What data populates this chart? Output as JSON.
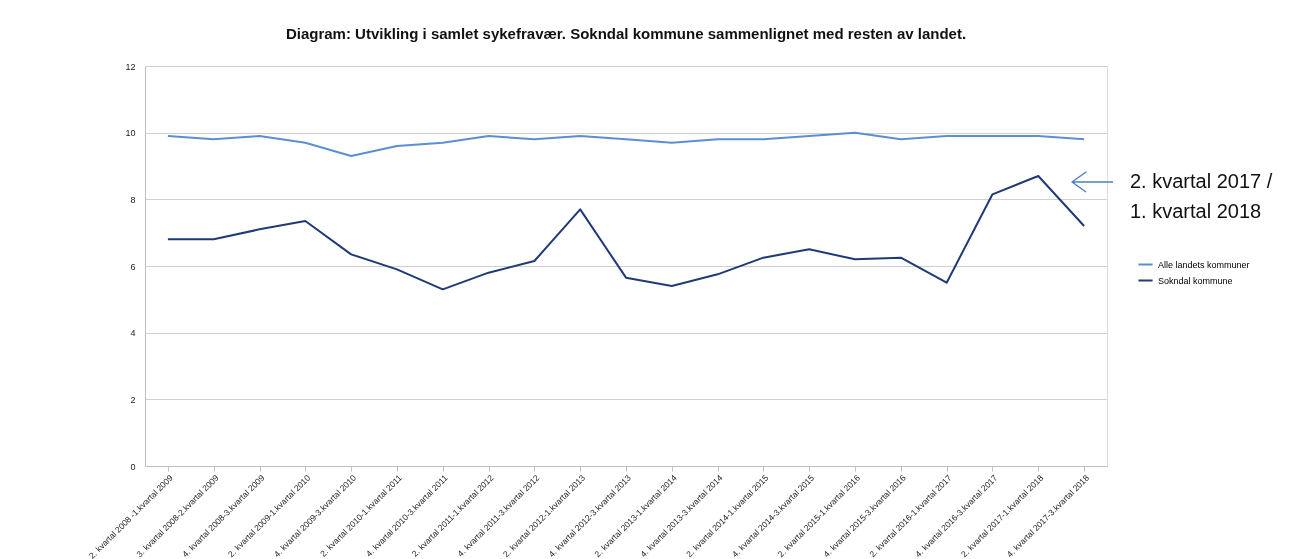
{
  "chart_data": {
    "type": "line",
    "title": "Diagram: Utvikling i samlet sykefravær. Sokndal kommune sammenlignet med resten av landet.",
    "categories": [
      "2. kvartal 2008 -1.kvartal 2009",
      "3. kvartal 2008-2.kvartal 2009",
      "4. kvartal 2008-3.kvartal 2009",
      "2. kvartal 2009-1.kvartal 2010",
      "4. kvartal 2009-3.kvartal 2010",
      "2. kvartal 2010-1.kvartal 2011",
      "4. kvartal 2010-3.kvartal 2011",
      "2. kvartal 2011-1.kvartal 2012",
      "4. kvartal 2011-3.kvartal 2012",
      "2. kvartal 2012-1.kvartal 2013",
      "4. kvartal 2012-3.kvartal 2013",
      "2. kvartal 2013-1.kvartal 2014",
      "4. kvartal 2013-3.kvartal 2014",
      "2. kvartal 2014-1.kvartal 2015",
      "4. kvartal 2014-3.kvartal 2015",
      "2. kvartal 2015-1.kvartal 2016",
      "4. kvartal 2015-3.kvartal 2016",
      "2. kvartal 2016-1.kvartal 2017",
      "4. kvartal 2016-3.kvartal 2017",
      "2. kvartal 2017-1.kvartal 2018",
      "4. kvartal 2017-3.kvartal 2018"
    ],
    "series": [
      {
        "name": "Alle landets kommuner",
        "color": "#5b8fd4",
        "values": [
          9.9,
          9.8,
          9.9,
          9.7,
          9.3,
          9.6,
          9.7,
          9.9,
          9.8,
          9.9,
          9.8,
          9.7,
          9.8,
          9.8,
          9.9,
          10.0,
          9.8,
          9.9,
          9.9,
          9.9,
          9.8
        ]
      },
      {
        "name": "Sokndal kommune",
        "color": "#1f3a77",
        "values": [
          6.8,
          6.8,
          7.1,
          7.35,
          6.35,
          5.9,
          5.3,
          5.8,
          6.15,
          7.7,
          5.65,
          5.4,
          5.75,
          6.25,
          6.5,
          6.2,
          6.25,
          5.5,
          8.15,
          8.7,
          7.2
        ]
      }
    ],
    "ylim": [
      0,
      12
    ],
    "yticks": [
      0,
      2,
      4,
      6,
      8,
      10,
      12
    ],
    "grid": "y",
    "legend": "right",
    "marker": "none",
    "line_style": "solid",
    "annotations": [
      "2. kvartal 2017 / 1. kvartal 2018"
    ]
  }
}
